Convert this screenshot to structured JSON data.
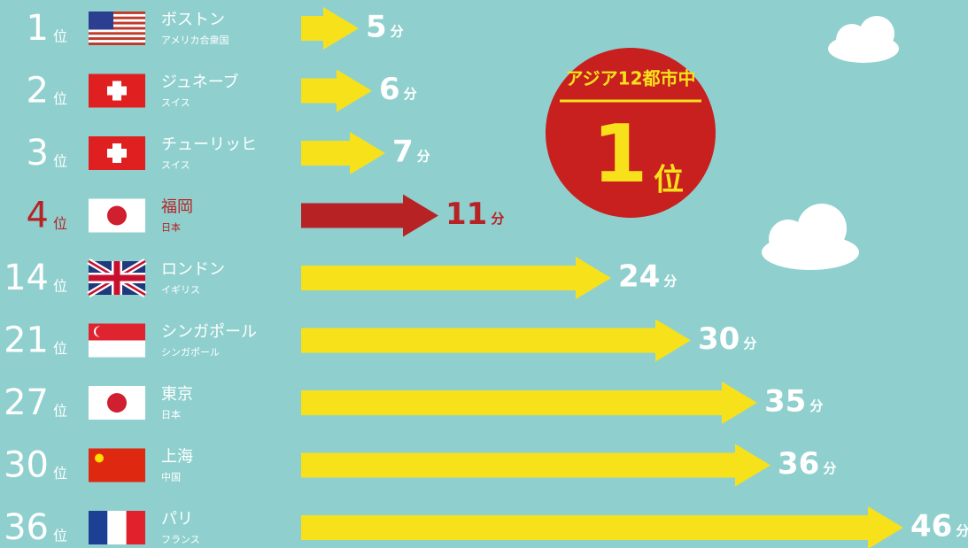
{
  "chart_data": {
    "type": "bar",
    "rank_unit": "位",
    "value_unit": "分",
    "ranks": [
      1,
      2,
      3,
      4,
      14,
      21,
      27,
      30,
      36
    ],
    "categories": [
      "ボストン",
      "ジュネーブ",
      "チューリッヒ",
      "福岡",
      "ロンドン",
      "シンガポール",
      "東京",
      "上海",
      "パリ"
    ],
    "countries": [
      "アメリカ合衆国",
      "スイス",
      "スイス",
      "日本",
      "イギリス",
      "シンガポール",
      "日本",
      "中国",
      "フランス"
    ],
    "values": [
      5,
      6,
      7,
      11,
      24,
      30,
      35,
      36,
      46
    ],
    "color": "#f7e11b",
    "highlight_color": "#b72225",
    "highlight": 3
  },
  "callout": {
    "title": "アジア12都市中",
    "rank": 1,
    "unit": "位"
  }
}
